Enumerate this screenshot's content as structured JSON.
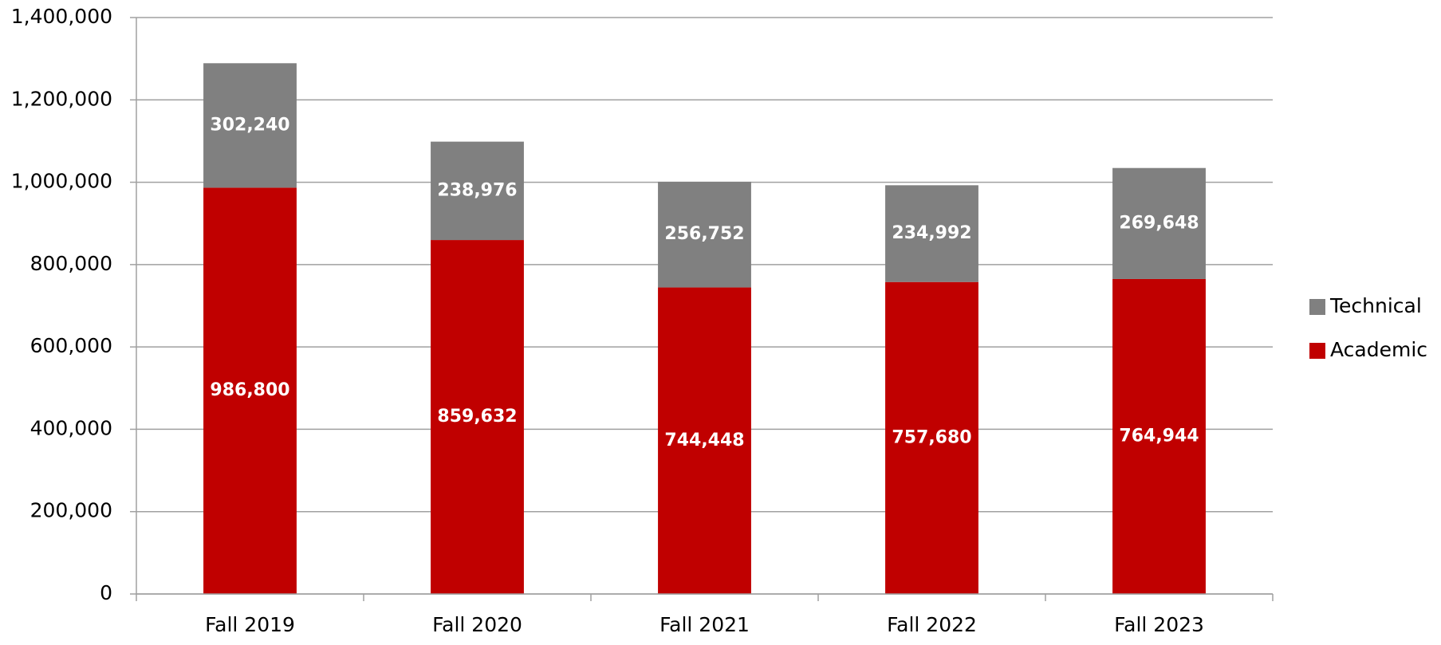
{
  "chart_data": {
    "type": "stacked_bar",
    "categories": [
      "Fall 2019",
      "Fall 2020",
      "Fall 2021",
      "Fall 2022",
      "Fall 2023"
    ],
    "series": [
      {
        "name": "Academic",
        "color": "#c00000",
        "values": [
          986800,
          859632,
          744448,
          757680,
          764944
        ],
        "value_labels": [
          "986,800",
          "859,632",
          "744,448",
          "757,680",
          "764,944"
        ]
      },
      {
        "name": "Technical",
        "color": "#808080",
        "values": [
          302240,
          238976,
          256752,
          234992,
          269648
        ],
        "value_labels": [
          "302,240",
          "238,976",
          "256,752",
          "234,992",
          "269,648"
        ]
      }
    ],
    "ylim": [
      0,
      1400000
    ],
    "yticks": [
      0,
      {
        "value": 200000,
        "label": "200,000"
      },
      {
        "value": 400000,
        "label": "400,000"
      },
      {
        "value": 600000,
        "label": "600,000"
      },
      {
        "value": 800000,
        "label": "800,000"
      },
      {
        "value": 1000000,
        "label": "1,000,000"
      },
      {
        "value": 1200000,
        "label": "1,200,000"
      },
      {
        "value": 1400000,
        "label": "1,400,000"
      }
    ],
    "grid": true,
    "legend": "right"
  }
}
